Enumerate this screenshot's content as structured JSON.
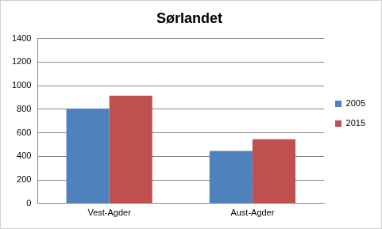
{
  "chart_data": {
    "type": "bar",
    "title": "Sørlandet",
    "categories": [
      "Vest-Agder",
      "Aust-Agder"
    ],
    "series": [
      {
        "name": "2005",
        "color": "#4f81bd",
        "values": [
          805,
          445
        ]
      },
      {
        "name": "2015",
        "color": "#c0504d",
        "values": [
          915,
          545
        ]
      }
    ],
    "ylim": [
      0,
      1400
    ],
    "yticks": [
      0,
      200,
      400,
      600,
      800,
      1000,
      1200,
      1400
    ],
    "grid": true,
    "legend": "right"
  }
}
